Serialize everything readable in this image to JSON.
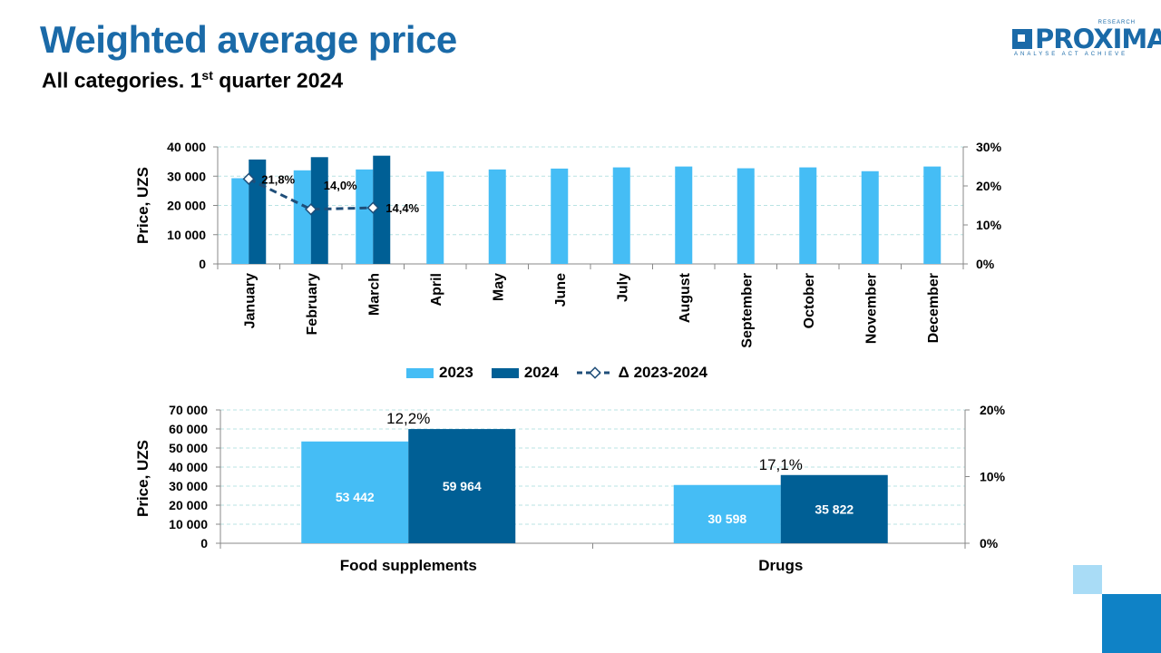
{
  "header": {
    "title": "Weighted average price",
    "subtitle_main": "All categories. 1",
    "subtitle_sup": "st",
    "subtitle_rest": " quarter 2024"
  },
  "logo": {
    "word": "PROXIMA",
    "research": "RESEARCH",
    "tagline": "ANALYSE  ACT  ACHIEVE"
  },
  "legend": {
    "series_2023": "2023",
    "series_2024": "2024",
    "delta": "Δ 2023-2024"
  },
  "colors": {
    "s2023": "#45bdf5",
    "s2024": "#005f95",
    "delta": "#1f4e79",
    "grid": "#b9e3e3",
    "title": "#1a6aa8"
  },
  "chart_data": [
    {
      "type": "bar",
      "title": "",
      "categories": [
        "January",
        "February",
        "March",
        "April",
        "May",
        "June",
        "July",
        "August",
        "September",
        "October",
        "November",
        "December"
      ],
      "series": [
        {
          "name": "2023",
          "values": [
            29300,
            32000,
            32300,
            31600,
            32300,
            32600,
            33000,
            33300,
            32700,
            33000,
            31700,
            33300
          ]
        },
        {
          "name": "2024",
          "values": [
            35700,
            36500,
            37000,
            null,
            null,
            null,
            null,
            null,
            null,
            null,
            null,
            null
          ]
        }
      ],
      "line_series": {
        "name": "Δ 2023-2024",
        "values": [
          21.8,
          14.0,
          14.4
        ],
        "labels": [
          "21,8%",
          "14,0%",
          "14,4%"
        ],
        "axis": "secondary"
      },
      "ylabel": "Price, UZS",
      "ylim": [
        0,
        40000
      ],
      "yticks": [
        "0",
        "10 000",
        "20 000",
        "30 000",
        "40 000"
      ],
      "y2lim": [
        0,
        30
      ],
      "y2ticks": [
        "0%",
        "10%",
        "20%",
        "30%"
      ],
      "grid": true,
      "legend_position": "bottom"
    },
    {
      "type": "bar",
      "title": "",
      "categories": [
        "Food supplements",
        "Drugs"
      ],
      "series": [
        {
          "name": "2023",
          "values": [
            53442,
            30598
          ],
          "labels": [
            "53 442",
            "30 598"
          ]
        },
        {
          "name": "2024",
          "values": [
            59964,
            35822
          ],
          "labels": [
            "59 964",
            "35 822"
          ]
        }
      ],
      "change_labels": [
        "12,2%",
        "17,1%"
      ],
      "ylabel": "Price, UZS",
      "ylim": [
        0,
        70000
      ],
      "yticks": [
        "0",
        "10 000",
        "20 000",
        "30 000",
        "40 000",
        "50 000",
        "60 000",
        "70 000"
      ],
      "y2lim": [
        0,
        20
      ],
      "y2ticks": [
        "0%",
        "10%",
        "20%"
      ],
      "grid": true
    }
  ]
}
